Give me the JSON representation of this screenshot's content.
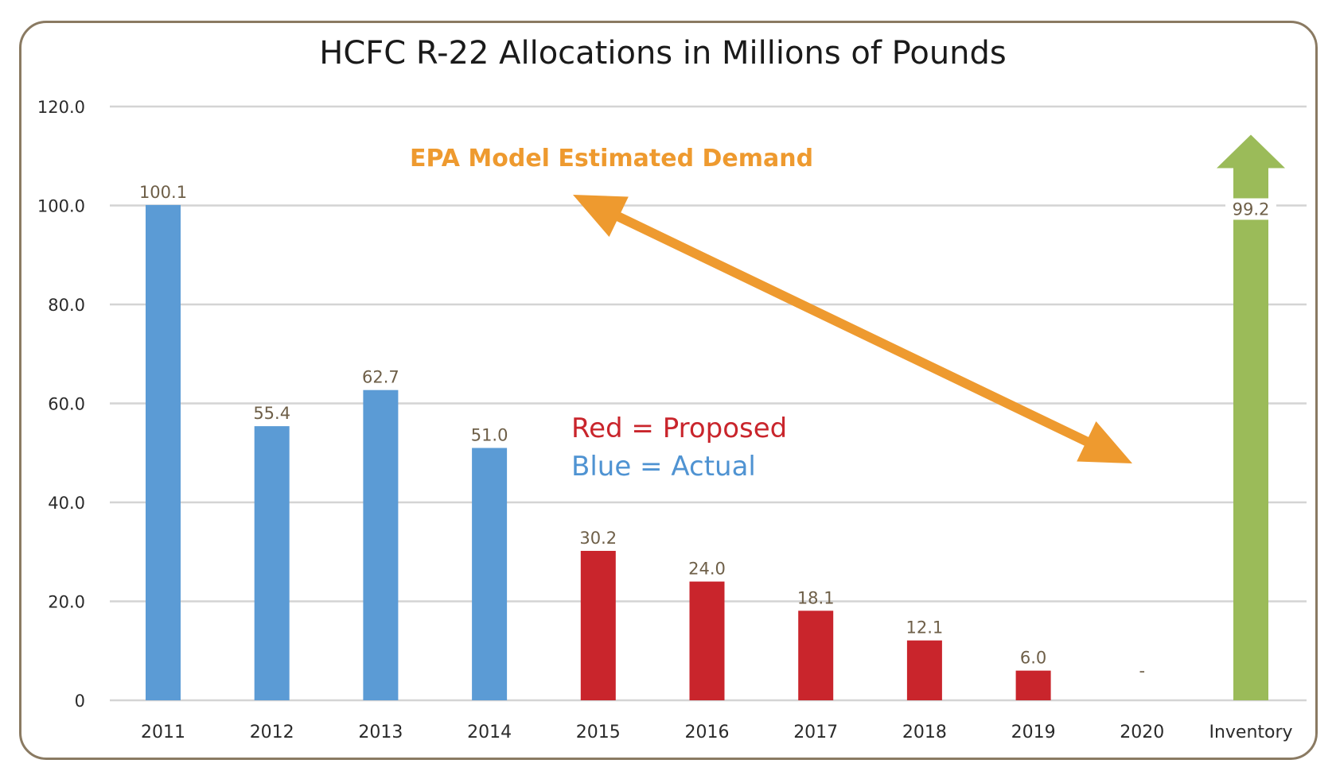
{
  "chart_data": {
    "type": "bar",
    "title": "HCFC R-22 Allocations in Millions of Pounds",
    "categories": [
      "2011",
      "2012",
      "2013",
      "2014",
      "2015",
      "2016",
      "2017",
      "2018",
      "2019",
      "2020",
      "Inventory"
    ],
    "values": [
      100.1,
      55.4,
      62.7,
      51.0,
      30.2,
      24.0,
      18.1,
      12.1,
      6.0,
      null,
      99.2
    ],
    "data_labels": [
      "100.1",
      "55.4",
      "62.7",
      "51.0",
      "30.2",
      "24.0",
      "18.1",
      "12.1",
      "6.0",
      "-",
      "99.2"
    ],
    "bar_colors": [
      "#5b9bd5",
      "#5b9bd5",
      "#5b9bd5",
      "#5b9bd5",
      "#c9252c",
      "#c9252c",
      "#c9252c",
      "#c9252c",
      "#c9252c",
      "#c9252c",
      "#9bbb59"
    ],
    "inventory_marker": "up-arrow",
    "ylim": [
      0,
      120
    ],
    "yticks": [
      0,
      20,
      40,
      60,
      80,
      100,
      120
    ],
    "ytick_labels": [
      "0",
      "20.0",
      "40.0",
      "60.0",
      "80.0",
      "100.0",
      "120.0"
    ],
    "grid": true,
    "xlabel": "",
    "ylabel": "",
    "annotations": {
      "demand_label": "EPA Model Estimated Demand",
      "demand_arrow": {
        "from": "2014-2015 near 100",
        "to": "2020 near 48",
        "double_headed": true,
        "color": "#ee9a2f"
      },
      "legend_red": "Red = Proposed",
      "legend_blue": "Blue = Actual"
    },
    "colors": {
      "actual": "#5b9bd5",
      "proposed": "#c9252c",
      "inventory": "#9bbb59",
      "demand_arrow": "#ee9a2f",
      "frame": "#8a7a62"
    }
  }
}
